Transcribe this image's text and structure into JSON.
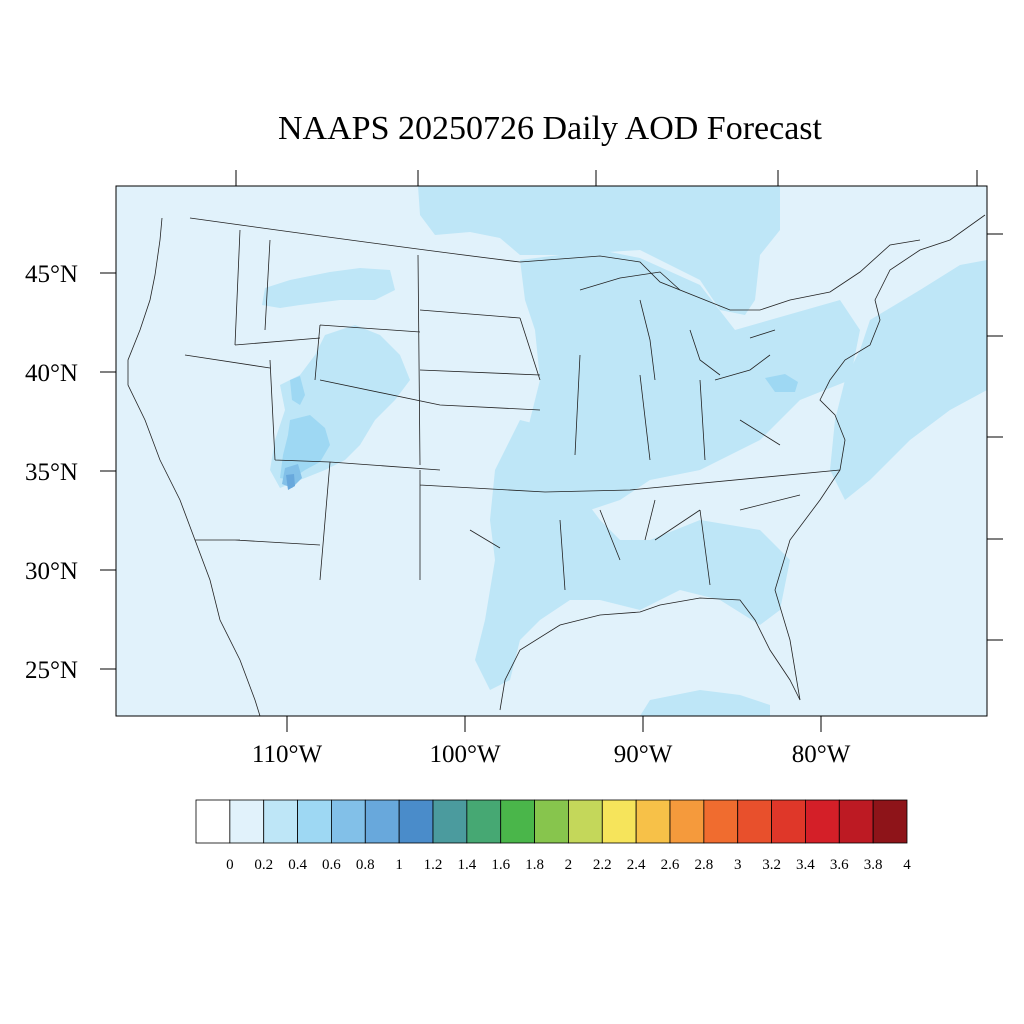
{
  "title": "NAAPS 20250726 Daily AOD Forecast",
  "lat_labels": [
    "45°N",
    "40°N",
    "35°N",
    "30°N",
    "25°N"
  ],
  "lon_labels": [
    "110°W",
    "100°W",
    "90°W",
    "80°W"
  ],
  "colorbar": {
    "labels": [
      "0",
      "0.2",
      "0.4",
      "0.6",
      "0.8",
      "1",
      "1.2",
      "1.4",
      "1.6",
      "1.8",
      "2",
      "2.2",
      "2.4",
      "2.6",
      "2.8",
      "3",
      "3.2",
      "3.4",
      "3.6",
      "3.8",
      "4"
    ],
    "colors": [
      "#ffffff",
      "#e1f2fb",
      "#bee6f7",
      "#9ed8f3",
      "#82c0e8",
      "#68a8dc",
      "#4a8cca",
      "#4b9b9e",
      "#46a873",
      "#4ab64a",
      "#87c54d",
      "#c4d75a",
      "#f6e45b",
      "#f7c148",
      "#f59a3c",
      "#f06c2f",
      "#e8502c",
      "#df3729",
      "#d41f28",
      "#bd1a23",
      "#8e1419"
    ]
  },
  "map": {
    "background_color": "#e1f2fb",
    "aod_level_0_4_color": "#bee6f7",
    "aod_level_0_6_color": "#9ed8f3",
    "aod_level_0_8_color": "#82c0e8",
    "aod_level_1_0_color": "#68a8dc"
  }
}
